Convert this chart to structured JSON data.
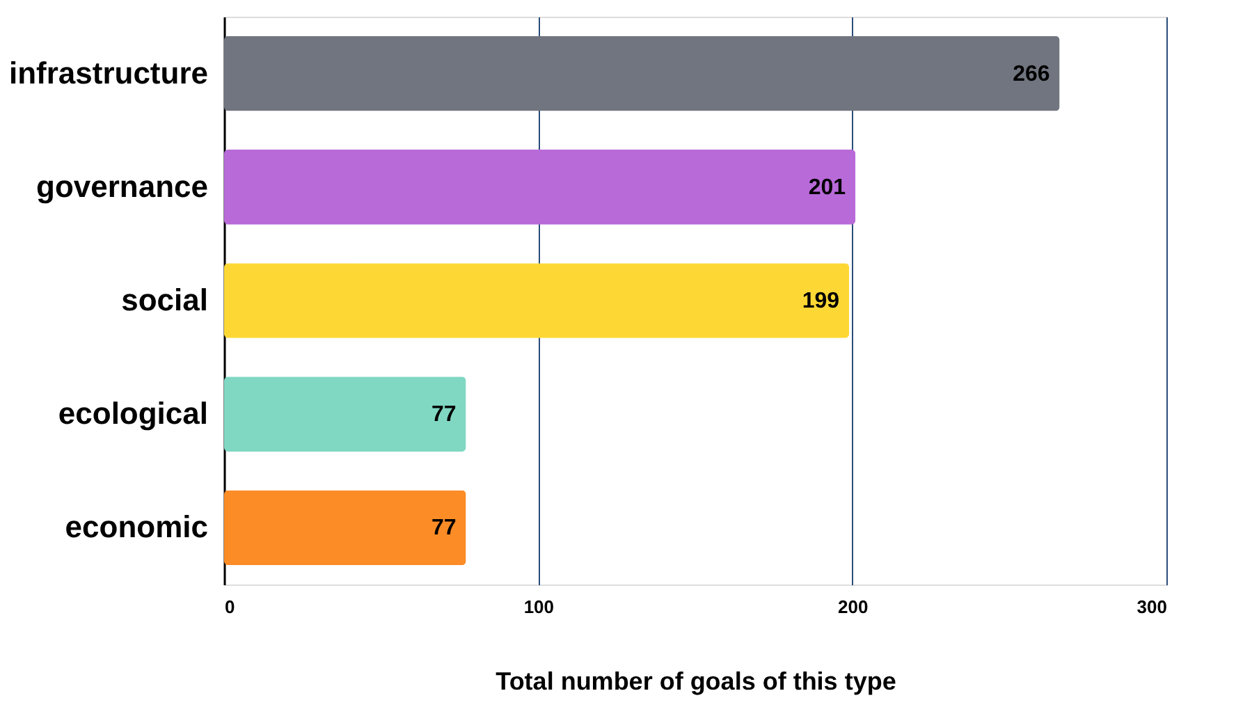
{
  "chart_data": {
    "type": "bar",
    "orientation": "horizontal",
    "xlabel": "Total number of goals of this type",
    "categories": [
      "infrastructure",
      "governance",
      "social",
      "ecological",
      "economic"
    ],
    "values": [
      266,
      201,
      199,
      77,
      77
    ],
    "colors": [
      "#71757f",
      "#b86ad9",
      "#fdd835",
      "#80d8c3",
      "#fb8c26"
    ],
    "xlim": [
      0,
      300
    ],
    "xticks": [
      0,
      100,
      200,
      300
    ],
    "grid": "x",
    "data_labels": true
  }
}
